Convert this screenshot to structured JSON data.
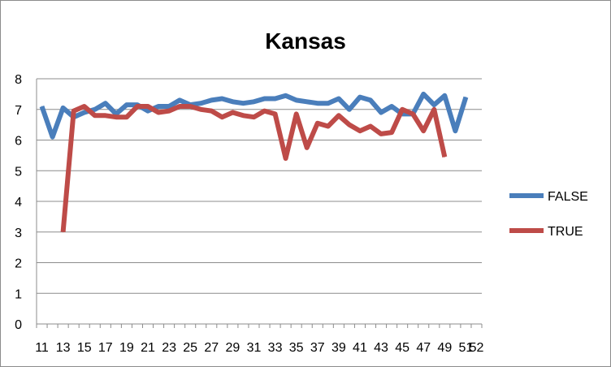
{
  "chart_data": {
    "type": "line",
    "title": "Kansas",
    "xlabel": "",
    "ylabel": "",
    "x": [
      11,
      12,
      13,
      14,
      15,
      16,
      17,
      18,
      19,
      20,
      21,
      22,
      23,
      24,
      25,
      26,
      27,
      28,
      29,
      30,
      31,
      32,
      33,
      34,
      35,
      36,
      37,
      38,
      39,
      40,
      41,
      42,
      43,
      44,
      45,
      46,
      47,
      48,
      49,
      50,
      51,
      52
    ],
    "x_tick_labels": [
      "11",
      "13",
      "15",
      "17",
      "19",
      "21",
      "23",
      "25",
      "27",
      "29",
      "31",
      "33",
      "35",
      "37",
      "39",
      "41",
      "43",
      "45",
      "47",
      "49",
      "51",
      "52"
    ],
    "ylim": [
      0,
      8
    ],
    "y_ticks": [
      0,
      1,
      2,
      3,
      4,
      5,
      6,
      7,
      8
    ],
    "grid": "horizontal",
    "legend_position": "right",
    "series": [
      {
        "name": "FALSE",
        "color": "#4a7ebb",
        "values": [
          7.1,
          6.1,
          7.05,
          6.75,
          6.9,
          7.0,
          7.2,
          6.85,
          7.15,
          7.15,
          6.95,
          7.1,
          7.1,
          7.3,
          7.15,
          7.2,
          7.3,
          7.35,
          7.25,
          7.2,
          7.25,
          7.35,
          7.35,
          7.45,
          7.3,
          7.25,
          7.2,
          7.2,
          7.35,
          7.0,
          7.4,
          7.3,
          6.9,
          7.1,
          6.85,
          6.85,
          7.5,
          7.15,
          7.45,
          6.3,
          7.4,
          null
        ]
      },
      {
        "name": "TRUE",
        "color": "#be4b48",
        "values": [
          null,
          null,
          3.0,
          6.95,
          7.1,
          6.8,
          6.8,
          6.75,
          6.75,
          7.1,
          7.1,
          6.9,
          6.95,
          7.1,
          7.1,
          7.0,
          6.95,
          6.75,
          6.9,
          6.8,
          6.75,
          6.95,
          6.85,
          5.4,
          6.85,
          5.75,
          6.55,
          6.45,
          6.8,
          6.5,
          6.3,
          6.45,
          6.2,
          6.25,
          7.0,
          6.85,
          6.3,
          7.0,
          5.45,
          null,
          null,
          null
        ]
      }
    ]
  }
}
